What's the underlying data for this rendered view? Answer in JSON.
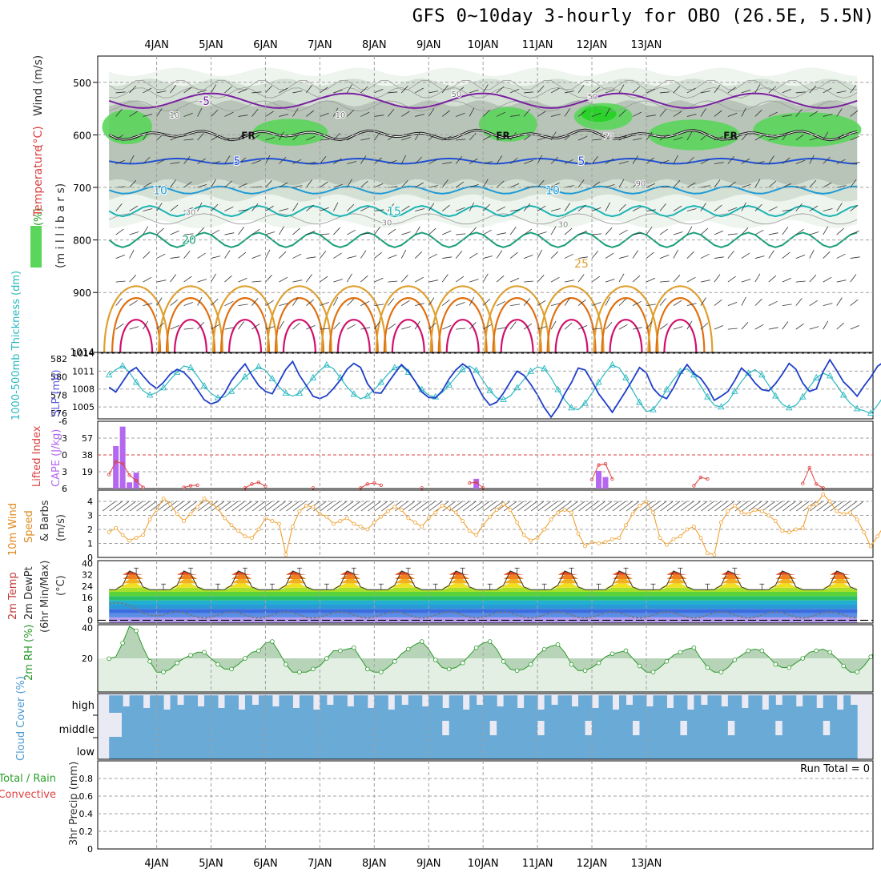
{
  "header": {
    "title": "GFS 0~10day 3-hourly for OBO (26.5E, 5.5N)"
  },
  "colors": {
    "temp_neg5": "#7b1fa2",
    "temp_5": "#1f4fd6",
    "temp_10": "#1e9ad6",
    "temp_15": "#19b3b3",
    "temp_20": "#1aa07a",
    "temp_25": "#e0a030",
    "temp_30": "#e07010",
    "temp_35": "#d0106a",
    "rh_green": "#5ad65a",
    "rh_gray": "#b8c4b8",
    "slp": "#1f3fc8",
    "thickness": "#2ab8c0",
    "cape": "#b468f0",
    "lifted": "#e04040",
    "wind": "#f0a030",
    "dewpt": "#777777",
    "rh2m": "#2a9a2a",
    "cloud": "#6aaad6",
    "cloud_clear": "#eaeaf4"
  },
  "chart_data": [
    {
      "type": "contour",
      "panel": "upper-air",
      "title": "Temperature (°C) Wind (m/s) RH (%)",
      "ylabel": "(millibars)",
      "yaxis_label_parts": [
        "RH (%)",
        "Temperature",
        " (°C)",
        "Wind (m/s)",
        "(m i l l i b a r s)"
      ],
      "x_ticks": [
        "4JAN",
        "5JAN",
        "6JAN",
        "7JAN",
        "8JAN",
        "9JAN",
        "10JAN",
        "11JAN",
        "12JAN",
        "13JAN"
      ],
      "y_ticks": [
        500,
        600,
        700,
        800,
        900,
        1014
      ],
      "ylim": [
        450,
        1014
      ],
      "contour_labels": [
        "-5",
        "5",
        "5",
        "10",
        "10",
        "15",
        "20",
        "25",
        "FR",
        "FR",
        "FR",
        "10",
        "10",
        "30",
        "30",
        "30",
        "50",
        "50",
        "70",
        "90"
      ],
      "isotherms_mb": {
        "-5": 535,
        "5": 650,
        "10": 705,
        "15": 745,
        "20": 800,
        "25": 845
      }
    },
    {
      "type": "line",
      "panel": "slp-thickness",
      "ylabel_left": "1000-500mb Thickness (dm)",
      "ylabel_right": "SLP (mb)",
      "y_ticks_left": [
        576,
        578,
        580,
        582
      ],
      "y_ticks_right": [
        1005,
        1008,
        1011,
        1014
      ],
      "ylim_slp": [
        1003,
        1014
      ],
      "ylim_thickness": [
        575.4,
        582.6
      ],
      "series": [
        {
          "name": "SLP",
          "unit": "mb",
          "values": [
            1008.3,
            1007.5,
            1009.2,
            1010.9,
            1011.6,
            1010.2,
            1008.9,
            1008.1,
            1009.1,
            1010.5,
            1011.3,
            1010.8,
            1009.6,
            1007.9,
            1006.2,
            1005.5,
            1005.9,
            1007.3,
            1009.4,
            1010.9,
            1012.2,
            1010.3,
            1008.6,
            1007.6,
            1007.2,
            1009.2,
            1011.3,
            1012.6,
            1010.3,
            1008.6,
            1006.8,
            1006.4,
            1006.9,
            1008.1,
            1009.5,
            1011.3,
            1012.3,
            1011.6,
            1008.9,
            1007.4,
            1007.3,
            1009.0,
            1010.6,
            1012.1,
            1011.0,
            1009.3,
            1007.5,
            1006.6,
            1006.5,
            1007.7,
            1009.7,
            1011.2,
            1012.2,
            1011.4,
            1008.8,
            1006.7,
            1005.3,
            1005.8,
            1007.3,
            1009.2,
            1011.0,
            1010.3,
            1008.8,
            1007.0,
            1004.9,
            1003.3,
            1004.9,
            1007.2,
            1009.1,
            1011.5,
            1011.2,
            1009.3,
            1007.2,
            1005.7,
            1004.1,
            1005.9,
            1007.7,
            1009.6,
            1011.6,
            1010.7,
            1008.1,
            1006.9,
            1006.4,
            1008.2,
            1010.5,
            1012.1,
            1010.6,
            1009.8,
            1008.2,
            1006.1,
            1006.8,
            1007.6,
            1009.4,
            1011.5,
            1010.5,
            1009.0,
            1007.9,
            1007.7,
            1008.9,
            1010.5,
            1012.3,
            1011.3,
            1009.0,
            1007.6,
            1008.0,
            1010.9,
            1012.9,
            1011.1,
            1009.2,
            1008.1,
            1006.8,
            1008.5,
            1010.0,
            1011.8,
            1012.6,
            1011.8,
            1010.4,
            1009.1,
            1010.2,
            1013.8
          ]
        },
        {
          "name": "1000-500mb Thickness",
          "unit": "dm",
          "values": [
            580.2,
            580.8,
            581.2,
            580.5,
            579.4,
            578.5,
            578.0,
            578.3,
            578.8,
            579.7,
            580.5,
            581.2,
            581.0,
            580.1,
            579.0,
            578.2,
            577.7,
            577.8,
            578.4,
            579.2,
            580.0,
            580.6,
            581.1,
            580.7,
            579.8,
            578.9,
            578.2,
            577.9,
            578.2,
            579.0,
            579.9,
            580.7,
            581.3,
            580.9,
            579.9,
            578.9,
            578.1,
            577.6,
            577.9,
            578.6,
            579.4,
            580.3,
            581.0,
            581.2,
            580.5,
            579.5,
            578.6,
            578.0,
            577.8,
            578.3,
            579.1,
            580.0,
            580.8,
            581.2,
            580.7,
            579.6,
            578.5,
            577.7,
            577.5,
            577.9,
            578.8,
            579.7,
            580.6,
            581.1,
            580.9,
            579.9,
            578.6,
            577.5,
            576.6,
            576.4,
            577.1,
            578.2,
            579.4,
            580.5,
            581.3,
            581.0,
            579.9,
            578.5,
            577.2,
            576.2,
            576.4,
            577.4,
            578.6,
            579.7,
            580.6,
            580.9,
            580.2,
            579.0,
            577.8,
            576.9,
            576.7,
            577.3,
            578.4,
            579.5,
            580.4,
            580.8,
            580.2,
            579.1,
            577.9,
            577.0,
            576.6,
            576.9,
            577.8,
            578.9,
            579.9,
            580.4,
            580.1,
            579.1,
            578.0,
            577.1,
            576.5,
            576.3,
            576.0,
            576.9,
            578.0,
            579.0,
            578.5,
            577.4,
            576.5,
            575.9,
            575.8
          ]
        }
      ]
    },
    {
      "type": "bar",
      "panel": "stability",
      "ylabel_left": "Lifted Index",
      "ylabel_right": "CAPE (J/kg)",
      "y_ticks_left": [
        "-6",
        "-3",
        "0",
        "3",
        "6"
      ],
      "y_ticks_right": [
        19,
        38,
        57
      ],
      "ylim_cape": [
        0,
        76
      ],
      "cape_bars": [
        {
          "hour": 3,
          "value": 48
        },
        {
          "hour": 6,
          "value": 70
        },
        {
          "hour": 9,
          "value": 7
        },
        {
          "hour": 12,
          "value": 18
        },
        {
          "hour": 162,
          "value": 11
        },
        {
          "hour": 216,
          "value": 20
        },
        {
          "hour": 219,
          "value": 13
        }
      ],
      "lifted_index": [
        {
          "hour": 0,
          "value": 3.5
        },
        {
          "hour": 3,
          "value": 1.2
        },
        {
          "hour": 6,
          "value": 1.5
        },
        {
          "hour": 9,
          "value": 3.6
        },
        {
          "hour": 12,
          "value": 4.6
        },
        {
          "hour": 15,
          "value": 5.8
        },
        {
          "hour": 33,
          "value": 5.8
        },
        {
          "hour": 36,
          "value": 5.5
        },
        {
          "hour": 39,
          "value": 5.4
        },
        {
          "hour": 60,
          "value": 5.9
        },
        {
          "hour": 63,
          "value": 5.2
        },
        {
          "hour": 66,
          "value": 4.9
        },
        {
          "hour": 69,
          "value": 5.6
        },
        {
          "hour": 90,
          "value": 5.9
        },
        {
          "hour": 111,
          "value": 5.9
        },
        {
          "hour": 114,
          "value": 5.2
        },
        {
          "hour": 117,
          "value": 5.0
        },
        {
          "hour": 120,
          "value": 5.4
        },
        {
          "hour": 138,
          "value": 5.9
        },
        {
          "hour": 159,
          "value": 5.0
        },
        {
          "hour": 162,
          "value": 4.9
        },
        {
          "hour": 165,
          "value": 5.9
        },
        {
          "hour": 213,
          "value": 4.4
        },
        {
          "hour": 216,
          "value": 1.8
        },
        {
          "hour": 219,
          "value": 1.6
        },
        {
          "hour": 222,
          "value": 4.3
        },
        {
          "hour": 258,
          "value": 5.5
        },
        {
          "hour": 261,
          "value": 4.0
        },
        {
          "hour": 264,
          "value": 4.3
        },
        {
          "hour": 306,
          "value": 5.1
        },
        {
          "hour": 309,
          "value": 2.3
        },
        {
          "hour": 312,
          "value": 5.2
        },
        {
          "hour": 315,
          "value": 5.9
        }
      ]
    },
    {
      "type": "line",
      "panel": "wind10m",
      "ylabel": "10m Wind Speed & Barbs (m/s)",
      "ylabel_parts": [
        "10m Wind",
        "Speed",
        "& Barbs",
        "(m/s)"
      ],
      "y_ticks": [
        0,
        1,
        2,
        3,
        4
      ],
      "ylim": [
        0,
        4.8
      ],
      "series": [
        {
          "name": "10m wind speed",
          "values": [
            1.8,
            2.1,
            1.6,
            1.2,
            1.4,
            1.6,
            2.7,
            3.4,
            4.2,
            3.8,
            3.1,
            2.6,
            3.1,
            3.6,
            4.2,
            3.9,
            3.5,
            2.8,
            2.3,
            1.9,
            1.5,
            1.4,
            2.0,
            2.8,
            2.6,
            2.4,
            0.2,
            2.2,
            3.3,
            3.7,
            3.6,
            3.1,
            2.9,
            2.4,
            2.6,
            2.8,
            2.4,
            2.2,
            2.0,
            2.5,
            2.9,
            3.3,
            3.6,
            3.4,
            2.8,
            2.5,
            2.2,
            2.8,
            3.2,
            3.7,
            3.5,
            3.2,
            2.6,
            1.9,
            1.6,
            2.3,
            2.9,
            3.4,
            3.8,
            3.4,
            2.5,
            1.6,
            1.2,
            1.4,
            2.0,
            2.7,
            3.2,
            3.4,
            3.2,
            1.7,
            0.8,
            1.1,
            1.0,
            1.1,
            1.3,
            1.4,
            2.3,
            3.1,
            3.7,
            4.0,
            3.2,
            1.4,
            0.9,
            1.3,
            1.5,
            2.0,
            2.2,
            1.4,
            0.3,
            0.2,
            2.5,
            3.3,
            3.7,
            3.2,
            3.1,
            3.4,
            3.3,
            3.0,
            2.6,
            1.9,
            1.8,
            2.0,
            2.1,
            3.6,
            3.8,
            4.5,
            4.0,
            3.3,
            3.1,
            3.2,
            2.7,
            1.8,
            0.8,
            1.5,
            2.3,
            2.6,
            2.8,
            3.1,
            2.9,
            2.6,
            2.4,
            2.3,
            2.1,
            1.3
          ]
        }
      ]
    },
    {
      "type": "area",
      "panel": "temperature2m",
      "ylabel": "2m Temp 2m DewPt (6hr Min/Max) (°C)",
      "ylabel_parts": [
        "2m Temp",
        "2m DewPt",
        "(6hr Min/Max)",
        "(°C)"
      ],
      "y_ticks": [
        0,
        8,
        16,
        24,
        32,
        40
      ],
      "ylim": [
        -2,
        42
      ],
      "daily_temp": {
        "min": 21.5,
        "max": 36.5
      },
      "daily_dewpoint": {
        "min": 1.5,
        "max": 6.0
      }
    },
    {
      "type": "area",
      "panel": "rh2m",
      "ylabel": "2m RH (%)",
      "y_ticks": [
        20,
        40
      ],
      "ylim": [
        -2,
        42
      ],
      "series": [
        {
          "name": "2m RH",
          "values": [
            19.8,
            21,
            30,
            41,
            38,
            27,
            18,
            11,
            11,
            13,
            17,
            20,
            22,
            24,
            24,
            20,
            16,
            13,
            13,
            16,
            20,
            24,
            25,
            30,
            31,
            24,
            16,
            11,
            11,
            11,
            13,
            15,
            20,
            25,
            25,
            26,
            27,
            20,
            13,
            11,
            11,
            14,
            18,
            23,
            26,
            29,
            31,
            26,
            19,
            14,
            13,
            14,
            17,
            22,
            27,
            30,
            31,
            26,
            18,
            13,
            12,
            13,
            16,
            22,
            26,
            28,
            29,
            24,
            16,
            12,
            12,
            14,
            17,
            21,
            23,
            24,
            25,
            20,
            15,
            11,
            11,
            14,
            18,
            22,
            24,
            26,
            27,
            20,
            14,
            11,
            11,
            14,
            19,
            22,
            25,
            26,
            25,
            21,
            16,
            14,
            14,
            17,
            20,
            24,
            25,
            26,
            24,
            20,
            15,
            11,
            11,
            15,
            21,
            26,
            30,
            31,
            30
          ]
        }
      ]
    },
    {
      "type": "heatmap",
      "panel": "cloud",
      "ylabel": "Cloud Cover (%)",
      "row_labels": [
        "high",
        "middle",
        "low"
      ]
    },
    {
      "type": "bar",
      "panel": "precip",
      "ylabel": "3hr Precip (mm)",
      "ylabel_left_parts": [
        "Total / Rain",
        "Convective"
      ],
      "y_ticks": [
        0,
        0.2,
        0.4,
        0.6,
        0.8
      ],
      "ylim": [
        0,
        1
      ],
      "run_total_text": "Run Total = 0",
      "values": []
    }
  ]
}
